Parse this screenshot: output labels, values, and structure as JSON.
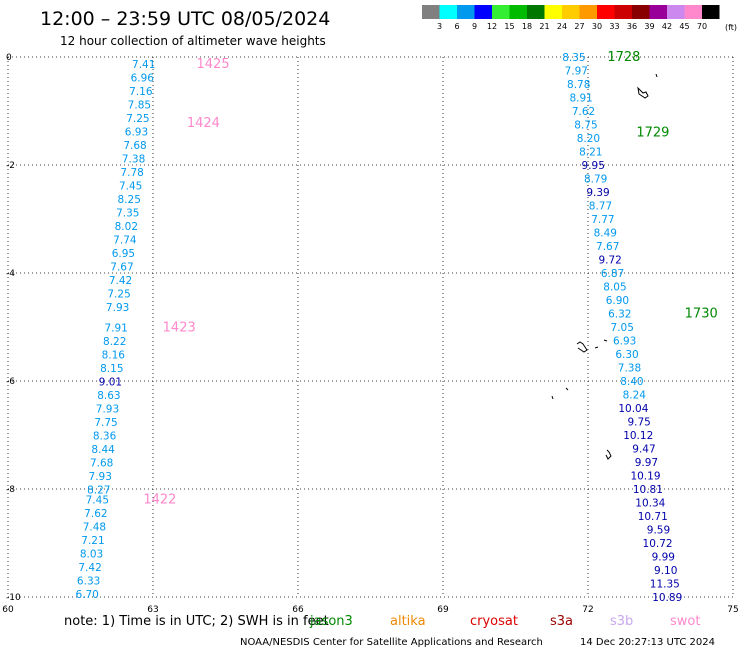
{
  "header": {
    "title": "12:00 – 23:59 UTC 08/05/2024",
    "subtitle": "12 hour collection of altimeter wave heights"
  },
  "legend": {
    "unit": "(ft)",
    "items": [
      {
        "label": "3",
        "color": "#808080"
      },
      {
        "label": "6",
        "color": "#00ffff"
      },
      {
        "label": "9",
        "color": "#0099ee"
      },
      {
        "label": "12",
        "color": "#0000ff"
      },
      {
        "label": "15",
        "color": "#33ee33"
      },
      {
        "label": "18",
        "color": "#00bb00"
      },
      {
        "label": "21",
        "color": "#007700"
      },
      {
        "label": "24",
        "color": "#ffff00"
      },
      {
        "label": "27",
        "color": "#ffcc00"
      },
      {
        "label": "30",
        "color": "#ff9900"
      },
      {
        "label": "33",
        "color": "#ff0000"
      },
      {
        "label": "36",
        "color": "#cc0000"
      },
      {
        "label": "39",
        "color": "#880000"
      },
      {
        "label": "42",
        "color": "#990099"
      },
      {
        "label": "45",
        "color": "#cc88ee"
      },
      {
        "label": "70",
        "color": "#ff88cc"
      },
      {
        "label": "",
        "color": "#000000"
      }
    ]
  },
  "footer": {
    "note": "note: 1) Time is in UTC; 2) SWH is in feet",
    "satellites": [
      {
        "name": "jason3",
        "color": "#008800"
      },
      {
        "name": "altika",
        "color": "#ee8800"
      },
      {
        "name": "cryosat",
        "color": "#dd0000"
      },
      {
        "name": "s3a",
        "color": "#990000"
      },
      {
        "name": "s3b",
        "color": "#c8a8ee"
      },
      {
        "name": "swot",
        "color": "#ff88cc"
      }
    ],
    "credit": "NOAA/NESDIS Center for Satellite Applications and Research",
    "timestamp": "14 Dec 20:27:13 UTC 2024"
  },
  "chart_data": {
    "type": "scatter",
    "title": "12:00 – 23:59 UTC 08/05/2024",
    "subtitle": "12 hour collection of altimeter wave heights",
    "xlim": [
      60,
      75
    ],
    "ylim": [
      -10,
      0
    ],
    "xticks": [
      "60",
      "63",
      "66",
      "69",
      "72",
      "75"
    ],
    "yticks": [
      "0",
      "-2",
      "-4",
      "-6",
      "-8",
      "-10"
    ],
    "grid": "dotted",
    "series": [
      {
        "satellite": "swot",
        "color": "#ff88cc",
        "pass_labels": [
          {
            "text": "1425",
            "x": 63.9,
            "y": -0.13
          },
          {
            "text": "1424",
            "x": 63.7,
            "y": -1.22
          },
          {
            "text": "1423",
            "x": 63.2,
            "y": -5.01
          },
          {
            "text": "1422",
            "x": 62.8,
            "y": -8.19
          }
        ],
        "points": [
          {
            "x": 63.05,
            "y": -0.13,
            "v": "7.41",
            "c": "#0099ee"
          },
          {
            "x": 63.02,
            "y": -0.38,
            "v": "6.96",
            "c": "#0099ee"
          },
          {
            "x": 62.99,
            "y": -0.63,
            "v": "7.16",
            "c": "#0099ee"
          },
          {
            "x": 62.96,
            "y": -0.88,
            "v": "7.85",
            "c": "#0099ee"
          },
          {
            "x": 62.93,
            "y": -1.13,
            "v": "7.25",
            "c": "#0099ee"
          },
          {
            "x": 62.9,
            "y": -1.38,
            "v": "6.93",
            "c": "#0099ee"
          },
          {
            "x": 62.87,
            "y": -1.63,
            "v": "7.68",
            "c": "#0099ee"
          },
          {
            "x": 62.84,
            "y": -1.88,
            "v": "7.38",
            "c": "#0099ee"
          },
          {
            "x": 62.81,
            "y": -2.13,
            "v": "7.78",
            "c": "#0099ee"
          },
          {
            "x": 62.78,
            "y": -2.38,
            "v": "7.45",
            "c": "#0099ee"
          },
          {
            "x": 62.75,
            "y": -2.63,
            "v": "8.25",
            "c": "#0099ee"
          },
          {
            "x": 62.72,
            "y": -2.88,
            "v": "7.35",
            "c": "#0099ee"
          },
          {
            "x": 62.69,
            "y": -3.13,
            "v": "8.02",
            "c": "#0099ee"
          },
          {
            "x": 62.66,
            "y": -3.38,
            "v": "7.74",
            "c": "#0099ee"
          },
          {
            "x": 62.63,
            "y": -3.63,
            "v": "6.95",
            "c": "#0099ee"
          },
          {
            "x": 62.6,
            "y": -3.88,
            "v": "7.67",
            "c": "#0099ee"
          },
          {
            "x": 62.57,
            "y": -4.13,
            "v": "7.42",
            "c": "#0099ee"
          },
          {
            "x": 62.54,
            "y": -4.38,
            "v": "7.25",
            "c": "#0099ee"
          },
          {
            "x": 62.51,
            "y": -4.63,
            "v": "7.93",
            "c": "#0099ee"
          },
          {
            "x": 62.48,
            "y": -5.01,
            "v": "7.91",
            "c": "#0099ee"
          },
          {
            "x": 62.45,
            "y": -5.26,
            "v": "8.22",
            "c": "#0099ee"
          },
          {
            "x": 62.42,
            "y": -5.51,
            "v": "8.16",
            "c": "#0099ee"
          },
          {
            "x": 62.39,
            "y": -5.76,
            "v": "8.15",
            "c": "#0099ee"
          },
          {
            "x": 62.36,
            "y": -6.01,
            "v": "9.01",
            "c": "#0000aa"
          },
          {
            "x": 62.33,
            "y": -6.26,
            "v": "8.63",
            "c": "#0099ee"
          },
          {
            "x": 62.3,
            "y": -6.51,
            "v": "7.93",
            "c": "#0099ee"
          },
          {
            "x": 62.27,
            "y": -6.76,
            "v": "7.75",
            "c": "#0099ee"
          },
          {
            "x": 62.24,
            "y": -7.01,
            "v": "8.36",
            "c": "#0099ee"
          },
          {
            "x": 62.21,
            "y": -7.26,
            "v": "8.44",
            "c": "#0099ee"
          },
          {
            "x": 62.18,
            "y": -7.51,
            "v": "7.68",
            "c": "#0099ee"
          },
          {
            "x": 62.15,
            "y": -7.76,
            "v": "7.93",
            "c": "#0099ee"
          },
          {
            "x": 62.12,
            "y": -8.01,
            "v": "8.27",
            "c": "#0099ee"
          },
          {
            "x": 62.09,
            "y": -8.19,
            "v": "7.45",
            "c": "#0099ee"
          },
          {
            "x": 62.06,
            "y": -8.44,
            "v": "7.62",
            "c": "#0099ee"
          },
          {
            "x": 62.03,
            "y": -8.69,
            "v": "7.48",
            "c": "#0099ee"
          },
          {
            "x": 62.0,
            "y": -8.94,
            "v": "7.21",
            "c": "#0099ee"
          },
          {
            "x": 61.97,
            "y": -9.19,
            "v": "8.03",
            "c": "#0099ee"
          },
          {
            "x": 61.94,
            "y": -9.44,
            "v": "7.42",
            "c": "#0099ee"
          },
          {
            "x": 61.91,
            "y": -9.69,
            "v": "6.33",
            "c": "#0099ee"
          },
          {
            "x": 61.88,
            "y": -9.94,
            "v": "6.70",
            "c": "#0099ee"
          }
        ]
      },
      {
        "satellite": "jason3",
        "color": "#008800",
        "pass_labels": [
          {
            "text": "1728",
            "x": 72.4,
            "y": 0.0
          },
          {
            "text": "1729",
            "x": 73.0,
            "y": -1.4
          },
          {
            "text": "1730",
            "x": 74.0,
            "y": -4.75
          }
        ],
        "points": [
          {
            "x": 71.95,
            "y": 0.0,
            "v": "8.35",
            "c": "#0099ee"
          },
          {
            "x": 72.0,
            "y": -0.25,
            "v": "7.97",
            "c": "#0099ee"
          },
          {
            "x": 72.05,
            "y": -0.5,
            "v": "8.78",
            "c": "#0099ee"
          },
          {
            "x": 72.1,
            "y": -0.75,
            "v": "8.91",
            "c": "#0099ee"
          },
          {
            "x": 72.15,
            "y": -1.0,
            "v": "7.62",
            "c": "#0099ee"
          },
          {
            "x": 72.2,
            "y": -1.25,
            "v": "8.75",
            "c": "#0099ee"
          },
          {
            "x": 72.25,
            "y": -1.5,
            "v": "8.20",
            "c": "#0099ee"
          },
          {
            "x": 72.3,
            "y": -1.75,
            "v": "8.21",
            "c": "#0099ee"
          },
          {
            "x": 72.35,
            "y": -2.0,
            "v": "9.95",
            "c": "#0000aa"
          },
          {
            "x": 72.4,
            "y": -2.25,
            "v": "8.79",
            "c": "#0099ee"
          },
          {
            "x": 72.45,
            "y": -2.5,
            "v": "9.39",
            "c": "#0000aa"
          },
          {
            "x": 72.5,
            "y": -2.75,
            "v": "8.77",
            "c": "#0099ee"
          },
          {
            "x": 72.55,
            "y": -3.0,
            "v": "7.77",
            "c": "#0099ee"
          },
          {
            "x": 72.6,
            "y": -3.25,
            "v": "8.49",
            "c": "#0099ee"
          },
          {
            "x": 72.65,
            "y": -3.5,
            "v": "7.67",
            "c": "#0099ee"
          },
          {
            "x": 72.7,
            "y": -3.75,
            "v": "9.72",
            "c": "#0000aa"
          },
          {
            "x": 72.75,
            "y": -4.0,
            "v": "6.87",
            "c": "#0099ee"
          },
          {
            "x": 72.8,
            "y": -4.25,
            "v": "8.05",
            "c": "#0099ee"
          },
          {
            "x": 72.85,
            "y": -4.5,
            "v": "6.90",
            "c": "#0099ee"
          },
          {
            "x": 72.9,
            "y": -4.75,
            "v": "6.32",
            "c": "#0099ee"
          },
          {
            "x": 72.95,
            "y": -5.0,
            "v": "7.05",
            "c": "#0099ee"
          },
          {
            "x": 73.0,
            "y": -5.25,
            "v": "6.93",
            "c": "#0099ee"
          },
          {
            "x": 73.05,
            "y": -5.5,
            "v": "6.30",
            "c": "#0099ee"
          },
          {
            "x": 73.1,
            "y": -5.75,
            "v": "7.38",
            "c": "#0099ee"
          },
          {
            "x": 73.15,
            "y": -6.0,
            "v": "8.40",
            "c": "#0099ee"
          },
          {
            "x": 73.2,
            "y": -6.25,
            "v": "8.24",
            "c": "#0099ee"
          },
          {
            "x": 73.25,
            "y": -6.5,
            "v": "10.04",
            "c": "#0000aa"
          },
          {
            "x": 73.3,
            "y": -6.75,
            "v": "9.75",
            "c": "#0000aa"
          },
          {
            "x": 73.35,
            "y": -7.0,
            "v": "10.12",
            "c": "#0000aa"
          },
          {
            "x": 73.4,
            "y": -7.25,
            "v": "9.47",
            "c": "#0000aa"
          },
          {
            "x": 73.45,
            "y": -7.5,
            "v": "9.97",
            "c": "#0000aa"
          },
          {
            "x": 73.5,
            "y": -7.75,
            "v": "10.19",
            "c": "#0000aa"
          },
          {
            "x": 73.55,
            "y": -8.0,
            "v": "10.81",
            "c": "#0000aa"
          },
          {
            "x": 73.6,
            "y": -8.25,
            "v": "10.34",
            "c": "#0000aa"
          },
          {
            "x": 73.65,
            "y": -8.5,
            "v": "10.71",
            "c": "#0000aa"
          },
          {
            "x": 73.7,
            "y": -8.75,
            "v": "9.59",
            "c": "#0000aa"
          },
          {
            "x": 73.75,
            "y": -9.0,
            "v": "10.72",
            "c": "#0000aa"
          },
          {
            "x": 73.8,
            "y": -9.25,
            "v": "9.99",
            "c": "#0000aa"
          },
          {
            "x": 73.85,
            "y": -9.5,
            "v": "9.10",
            "c": "#0000aa"
          },
          {
            "x": 73.9,
            "y": -9.75,
            "v": "11.35",
            "c": "#0000aa"
          },
          {
            "x": 73.95,
            "y": -10.0,
            "v": "10.89",
            "c": "#0000aa"
          }
        ]
      }
    ]
  }
}
